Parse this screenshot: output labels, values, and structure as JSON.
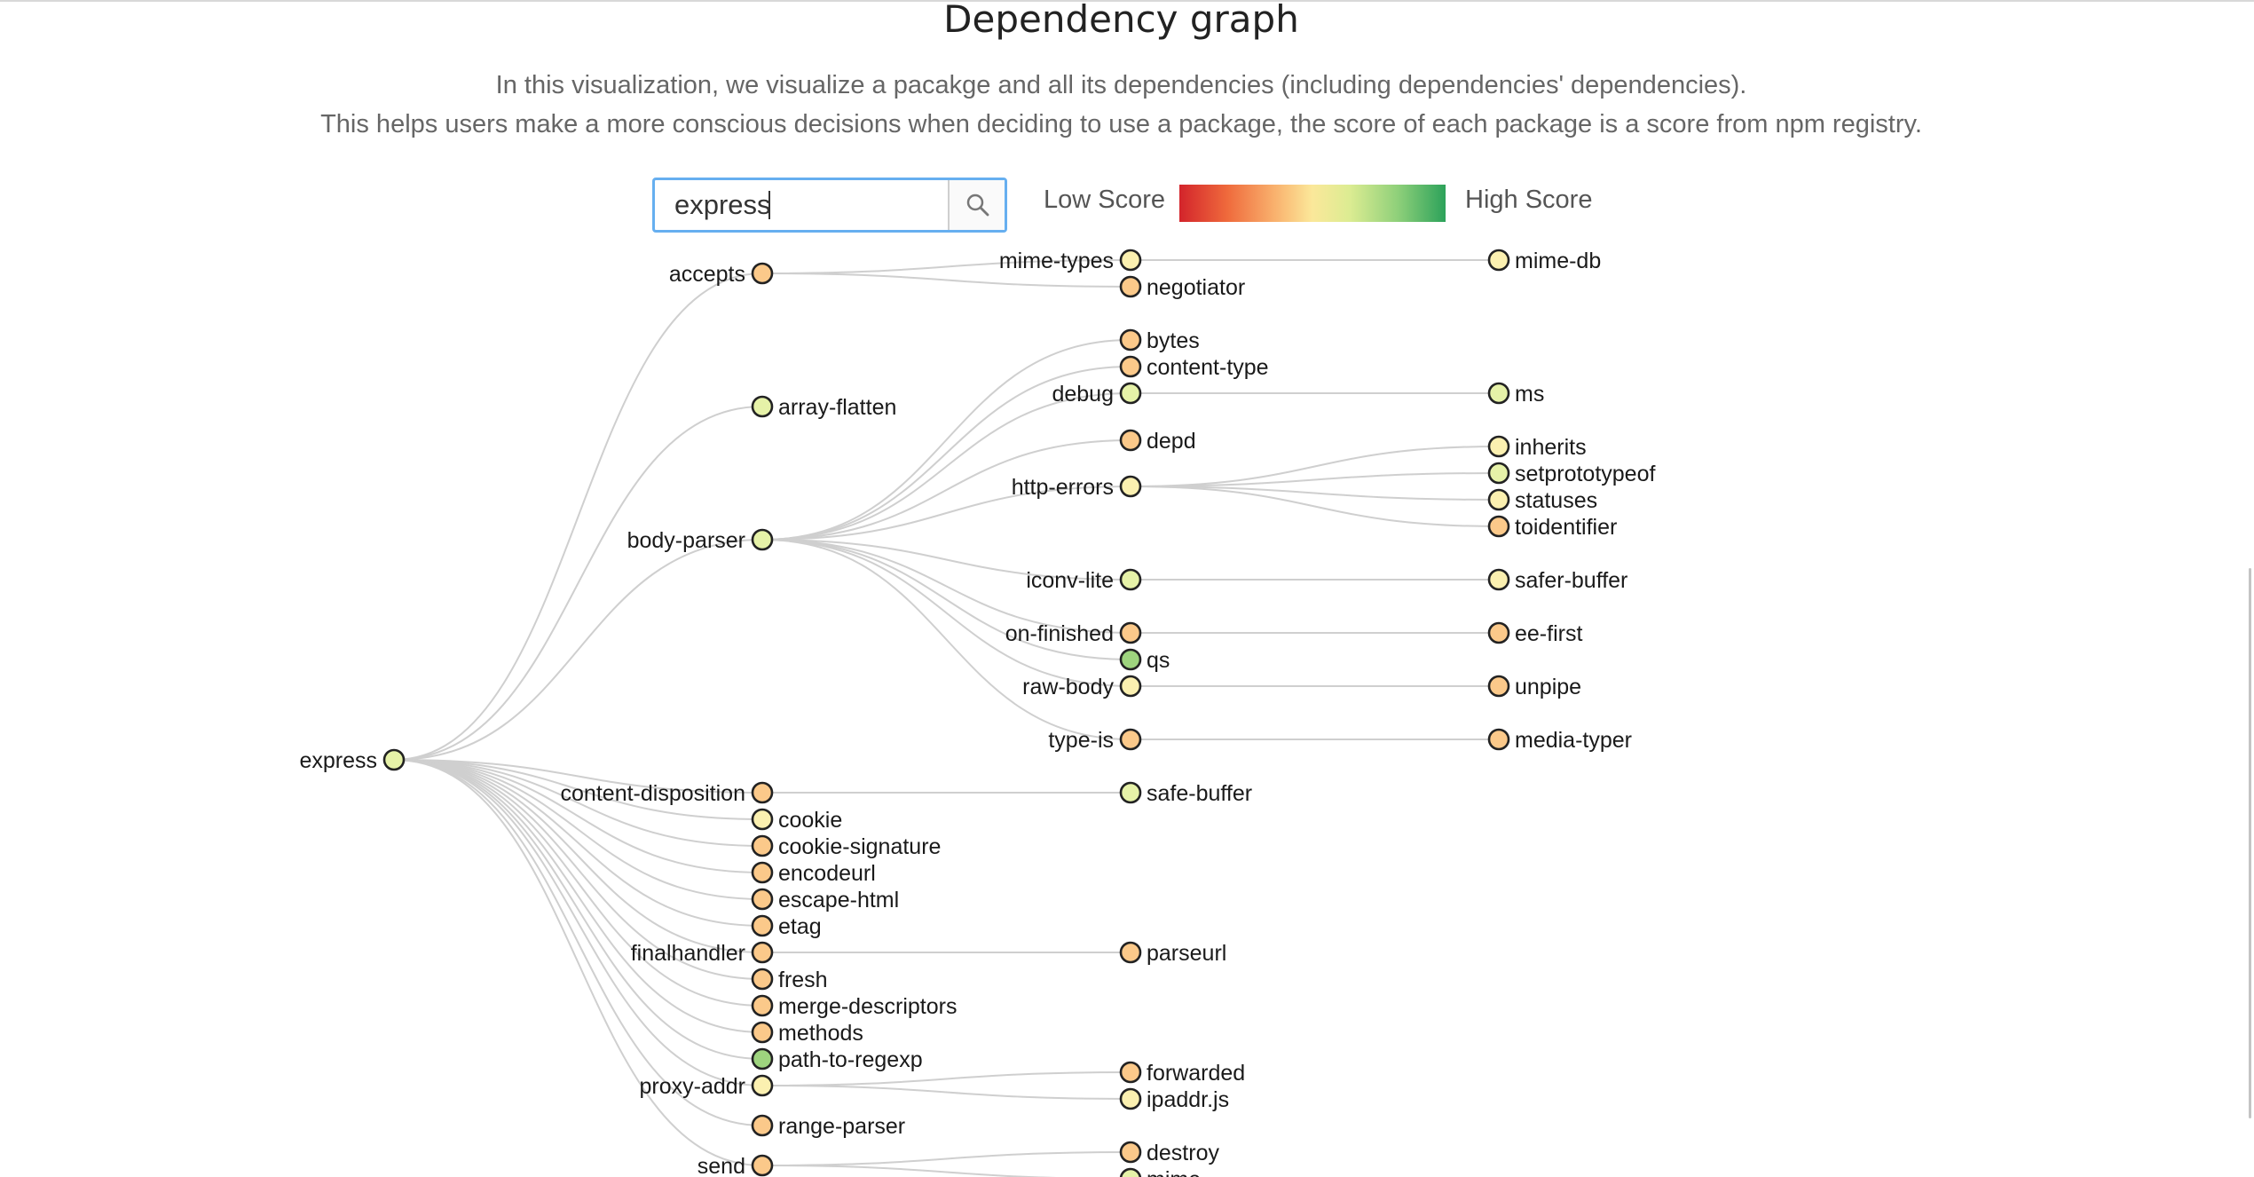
{
  "page": {
    "title": "Dependency graph",
    "description_line1": "In this visualization, we visualize a pacakge and all its dependencies (including dependencies' dependencies).",
    "description_line2": "This helps users make a more conscious decisions when deciding to use a package, the score of each package is a score from npm registry."
  },
  "search": {
    "value": "express",
    "button_icon": "search-icon"
  },
  "legend": {
    "low_label": "Low Score",
    "high_label": "High Score",
    "colors": [
      "#d3242b",
      "#ef6a3c",
      "#f9b26e",
      "#fbe89a",
      "#dcec92",
      "#8fd07a",
      "#2ca25a"
    ]
  },
  "colors": {
    "green": "#9ed47e",
    "lightgreen": "#e6f2a8",
    "yellow": "#fbf0b0",
    "orange": "#fbc98a",
    "link": "#cfcfcf"
  },
  "graph": {
    "root": "express",
    "nodes": [
      {
        "id": "express",
        "label": "express",
        "depth": 0,
        "color": "lightgreen"
      },
      {
        "id": "accepts",
        "label": "accepts",
        "parent": "express",
        "depth": 1,
        "color": "orange"
      },
      {
        "id": "mime-types",
        "label": "mime-types",
        "parent": "accepts",
        "depth": 2,
        "color": "yellow"
      },
      {
        "id": "mime-db",
        "label": "mime-db",
        "parent": "mime-types",
        "depth": 3,
        "color": "yellow"
      },
      {
        "id": "negotiator",
        "label": "negotiator",
        "parent": "accepts",
        "depth": 2,
        "color": "orange"
      },
      {
        "id": "array-flatten",
        "label": "array-flatten",
        "parent": "express",
        "depth": 1,
        "color": "lightgreen"
      },
      {
        "id": "body-parser",
        "label": "body-parser",
        "parent": "express",
        "depth": 1,
        "color": "lightgreen"
      },
      {
        "id": "bytes",
        "label": "bytes",
        "parent": "body-parser",
        "depth": 2,
        "color": "orange"
      },
      {
        "id": "content-type",
        "label": "content-type",
        "parent": "body-parser",
        "depth": 2,
        "color": "orange"
      },
      {
        "id": "debug",
        "label": "debug",
        "parent": "body-parser",
        "depth": 2,
        "color": "lightgreen"
      },
      {
        "id": "ms",
        "label": "ms",
        "parent": "debug",
        "depth": 3,
        "color": "lightgreen"
      },
      {
        "id": "depd",
        "label": "depd",
        "parent": "body-parser",
        "depth": 2,
        "color": "orange"
      },
      {
        "id": "http-errors",
        "label": "http-errors",
        "parent": "body-parser",
        "depth": 2,
        "color": "yellow"
      },
      {
        "id": "inherits",
        "label": "inherits",
        "parent": "http-errors",
        "depth": 3,
        "color": "yellow"
      },
      {
        "id": "setprototypeof",
        "label": "setprototypeof",
        "parent": "http-errors",
        "depth": 3,
        "color": "lightgreen"
      },
      {
        "id": "statuses",
        "label": "statuses",
        "parent": "http-errors",
        "depth": 3,
        "color": "yellow"
      },
      {
        "id": "toidentifier",
        "label": "toidentifier",
        "parent": "http-errors",
        "depth": 3,
        "color": "orange"
      },
      {
        "id": "iconv-lite",
        "label": "iconv-lite",
        "parent": "body-parser",
        "depth": 2,
        "color": "lightgreen"
      },
      {
        "id": "safer-buffer",
        "label": "safer-buffer",
        "parent": "iconv-lite",
        "depth": 3,
        "color": "yellow"
      },
      {
        "id": "on-finished",
        "label": "on-finished",
        "parent": "body-parser",
        "depth": 2,
        "color": "orange"
      },
      {
        "id": "ee-first",
        "label": "ee-first",
        "parent": "on-finished",
        "depth": 3,
        "color": "orange"
      },
      {
        "id": "qs",
        "label": "qs",
        "parent": "body-parser",
        "depth": 2,
        "color": "green"
      },
      {
        "id": "raw-body",
        "label": "raw-body",
        "parent": "body-parser",
        "depth": 2,
        "color": "yellow"
      },
      {
        "id": "unpipe",
        "label": "unpipe",
        "parent": "raw-body",
        "depth": 3,
        "color": "orange"
      },
      {
        "id": "type-is",
        "label": "type-is",
        "parent": "body-parser",
        "depth": 2,
        "color": "orange"
      },
      {
        "id": "media-typer",
        "label": "media-typer",
        "parent": "type-is",
        "depth": 3,
        "color": "orange"
      },
      {
        "id": "content-disposition",
        "label": "content-disposition",
        "parent": "express",
        "depth": 1,
        "color": "orange"
      },
      {
        "id": "safe-buffer",
        "label": "safe-buffer",
        "parent": "content-disposition",
        "depth": 2,
        "color": "lightgreen"
      },
      {
        "id": "cookie",
        "label": "cookie",
        "parent": "express",
        "depth": 1,
        "color": "yellow"
      },
      {
        "id": "cookie-signature",
        "label": "cookie-signature",
        "parent": "express",
        "depth": 1,
        "color": "orange"
      },
      {
        "id": "encodeurl",
        "label": "encodeurl",
        "parent": "express",
        "depth": 1,
        "color": "orange"
      },
      {
        "id": "escape-html",
        "label": "escape-html",
        "parent": "express",
        "depth": 1,
        "color": "orange"
      },
      {
        "id": "etag",
        "label": "etag",
        "parent": "express",
        "depth": 1,
        "color": "orange"
      },
      {
        "id": "finalhandler",
        "label": "finalhandler",
        "parent": "express",
        "depth": 1,
        "color": "orange"
      },
      {
        "id": "parseurl",
        "label": "parseurl",
        "parent": "finalhandler",
        "depth": 2,
        "color": "orange"
      },
      {
        "id": "fresh",
        "label": "fresh",
        "parent": "express",
        "depth": 1,
        "color": "orange"
      },
      {
        "id": "merge-descriptors",
        "label": "merge-descriptors",
        "parent": "express",
        "depth": 1,
        "color": "orange"
      },
      {
        "id": "methods",
        "label": "methods",
        "parent": "express",
        "depth": 1,
        "color": "orange"
      },
      {
        "id": "path-to-regexp",
        "label": "path-to-regexp",
        "parent": "express",
        "depth": 1,
        "color": "green"
      },
      {
        "id": "proxy-addr",
        "label": "proxy-addr",
        "parent": "express",
        "depth": 1,
        "color": "yellow"
      },
      {
        "id": "forwarded",
        "label": "forwarded",
        "parent": "proxy-addr",
        "depth": 2,
        "color": "orange"
      },
      {
        "id": "ipaddr.js",
        "label": "ipaddr.js",
        "parent": "proxy-addr",
        "depth": 2,
        "color": "yellow"
      },
      {
        "id": "range-parser",
        "label": "range-parser",
        "parent": "express",
        "depth": 1,
        "color": "orange"
      },
      {
        "id": "send",
        "label": "send",
        "parent": "express",
        "depth": 1,
        "color": "orange"
      },
      {
        "id": "destroy",
        "label": "destroy",
        "parent": "send",
        "depth": 2,
        "color": "orange"
      },
      {
        "id": "mime",
        "label": "mime",
        "parent": "send",
        "depth": 2,
        "color": "lightgreen"
      }
    ]
  }
}
